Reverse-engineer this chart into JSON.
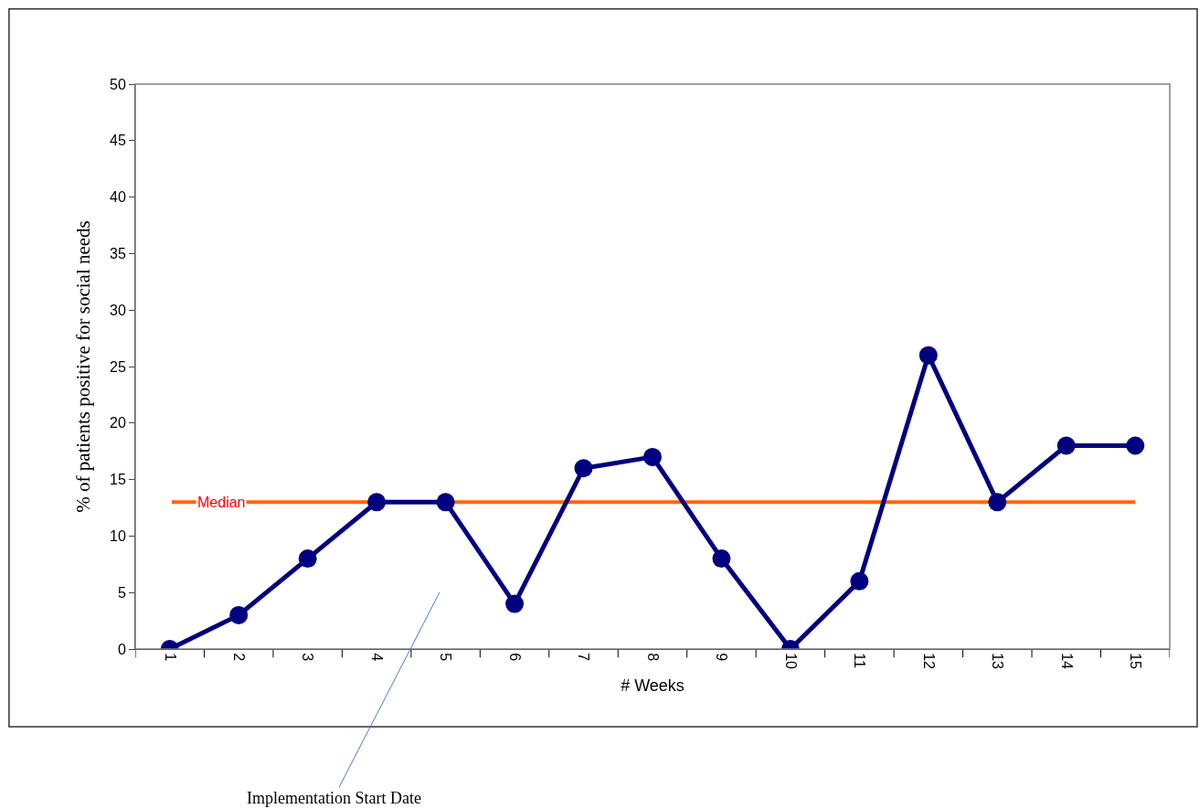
{
  "chart_data": {
    "type": "line",
    "xlabel": "# Weeks",
    "ylabel": "% of patients positive for social needs",
    "categories": [
      "1",
      "2",
      "3",
      "4",
      "5",
      "6",
      "7",
      "8",
      "9",
      "10",
      "11",
      "12",
      "13",
      "14",
      "15"
    ],
    "series": [
      {
        "color": "#000080",
        "values": [
          0,
          3,
          8,
          13,
          13,
          4,
          16,
          17,
          8,
          0,
          6,
          26,
          13,
          18,
          18
        ]
      }
    ],
    "ylim": [
      0,
      50
    ],
    "yticks": [
      0,
      5,
      10,
      15,
      20,
      25,
      30,
      35,
      40,
      45,
      50
    ],
    "ref_lines": [
      {
        "axis": "y",
        "value": 13,
        "label": "Median",
        "color": "#ff6600"
      }
    ],
    "annotations": [
      "Implementation Start Date"
    ],
    "marker": "circle",
    "line_style": "solid",
    "grid": false
  }
}
